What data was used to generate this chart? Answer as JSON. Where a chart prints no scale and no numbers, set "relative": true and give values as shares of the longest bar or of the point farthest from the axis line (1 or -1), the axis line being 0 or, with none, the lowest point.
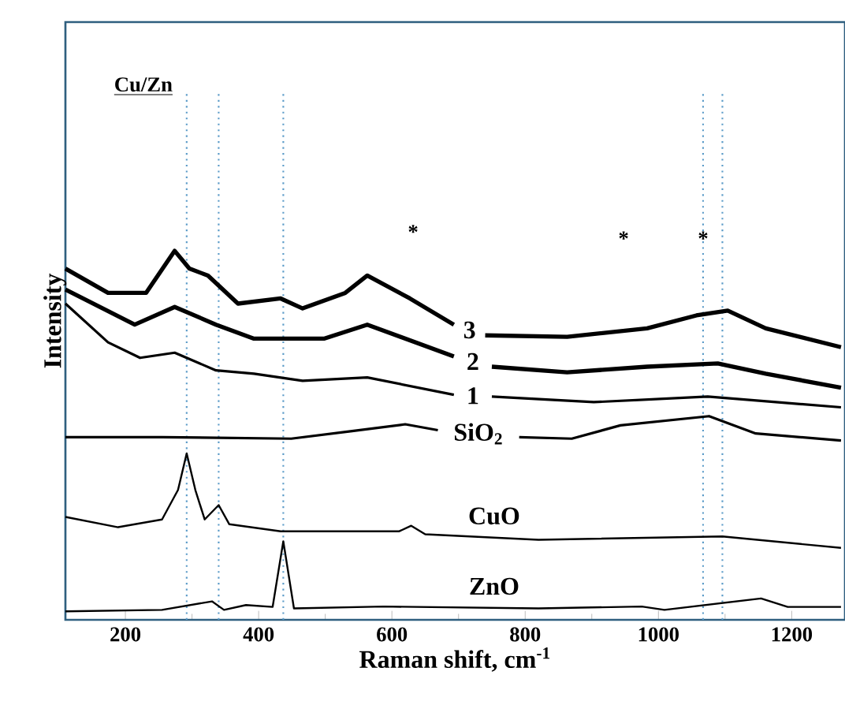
{
  "chart_data": {
    "type": "line",
    "relative": true,
    "xlabel": "Raman shift, cm$^{-1}$",
    "ylabel": "Intensity",
    "xlim": [
      110,
      1280
    ],
    "xticks": [
      200,
      400,
      600,
      800,
      1000,
      1200
    ],
    "marker": "none",
    "series": [
      {
        "name": "3",
        "color": "#000000",
        "x": [
          110,
          174,
          231,
          274,
          296,
          324,
          369,
          433,
          466,
          530,
          563,
          627,
          693,
          717,
          740,
          863,
          983,
          1057,
          1104,
          1161,
          1274
        ],
        "values": [
          0.952,
          0.886,
          0.886,
          1.0,
          0.952,
          0.933,
          0.857,
          0.871,
          0.844,
          0.886,
          0.933,
          0.871,
          0.8,
          null,
          0.771,
          0.767,
          0.79,
          0.825,
          0.838,
          0.79,
          0.739
        ]
      },
      {
        "name": "2",
        "color": "#000000",
        "x": [
          110,
          214,
          274,
          336,
          393,
          498,
          563,
          693,
          720,
          750,
          863,
          983,
          1089,
          1161,
          1274
        ],
        "values": [
          0.895,
          0.8,
          0.848,
          0.8,
          0.762,
          0.762,
          0.8,
          0.714,
          null,
          0.686,
          0.671,
          0.686,
          0.695,
          0.667,
          0.629
        ]
      },
      {
        "name": "1",
        "color": "#000000",
        "x": [
          110,
          174,
          222,
          274,
          336,
          393,
          466,
          563,
          693,
          720,
          750,
          903,
          1074,
          1274
        ],
        "values": [
          0.857,
          0.752,
          0.71,
          0.724,
          0.676,
          0.667,
          0.648,
          0.657,
          0.61,
          null,
          0.605,
          0.59,
          0.605,
          0.576
        ]
      },
      {
        "name": "SiO$_{2}$",
        "color": "#000000",
        "x": [
          110,
          255,
          449,
          538,
          620,
          669,
          730,
          791,
          870,
          943,
          1076,
          1146,
          1274
        ],
        "values": [
          0.495,
          0.495,
          0.491,
          0.511,
          0.53,
          0.514,
          null,
          0.495,
          0.491,
          0.527,
          0.552,
          0.505,
          0.486
        ]
      },
      {
        "name": "CuO",
        "color": "#000000",
        "x": [
          110,
          189,
          255,
          279,
          292,
          305,
          319,
          340,
          356,
          433,
          611,
          629,
          650,
          820,
          1096,
          1274
        ],
        "values": [
          0.279,
          0.251,
          0.272,
          0.352,
          0.451,
          0.352,
          0.272,
          0.311,
          0.259,
          0.24,
          0.24,
          0.255,
          0.232,
          0.217,
          0.226,
          0.195
        ]
      },
      {
        "name": "ZnO",
        "color": "#000000",
        "x": [
          110,
          255,
          330,
          348,
          381,
          421,
          437,
          453,
          588,
          820,
          975,
          1009,
          1154,
          1194,
          1274
        ],
        "values": [
          0.023,
          0.027,
          0.05,
          0.027,
          0.04,
          0.035,
          0.213,
          0.031,
          0.036,
          0.031,
          0.036,
          0.027,
          0.058,
          0.035,
          0.035
        ]
      }
    ],
    "ref_lines": [
      {
        "axis": "x",
        "value": 292,
        "color": "#5b9bc8",
        "line_style": "dotted"
      },
      {
        "axis": "x",
        "value": 340,
        "color": "#5b9bc8",
        "line_style": "dotted"
      },
      {
        "axis": "x",
        "value": 437,
        "color": "#5b9bc8",
        "line_style": "dotted"
      },
      {
        "axis": "x",
        "value": 1067,
        "color": "#5b9bc8",
        "line_style": "dotted"
      },
      {
        "axis": "x",
        "value": 1096,
        "color": "#5b9bc8",
        "line_style": "dotted"
      }
    ],
    "annotations": [
      "Cu/Zn",
      "*",
      "*",
      "*"
    ]
  }
}
